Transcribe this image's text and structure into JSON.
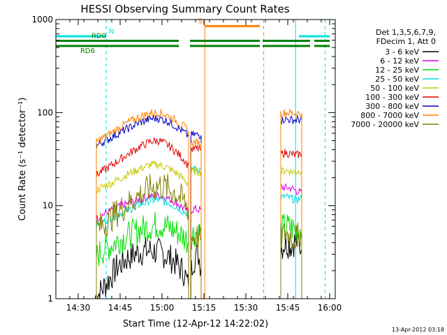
{
  "chart_data": {
    "type": "line",
    "title": "HESSI Observing Summary Count Rates",
    "xlabel": "Start Time (12-Apr-12 14:22:02)",
    "ylabel": "Count Rate (s⁻¹ detector⁻¹)",
    "x_units": "minutes after 14:22:02",
    "xlim": [
      0,
      100
    ],
    "ylim": [
      1,
      1000
    ],
    "y_scale": "log",
    "grid": false,
    "x_ticks": [
      {
        "x": 8,
        "label": "14:30"
      },
      {
        "x": 23,
        "label": "14:45"
      },
      {
        "x": 38,
        "label": "15:00"
      },
      {
        "x": 53,
        "label": "15:15"
      },
      {
        "x": 68,
        "label": "15:30"
      },
      {
        "x": 83,
        "label": "15:45"
      },
      {
        "x": 98,
        "label": "16:00"
      }
    ],
    "y_ticks": [
      {
        "y": 1,
        "label": "1"
      },
      {
        "y": 10,
        "label": "10"
      },
      {
        "y": 100,
        "label": "100"
      },
      {
        "y": 1000,
        "label": "1000"
      }
    ],
    "legend_header": [
      "Det 1,3,5,6,7,9,",
      "FDecim 1, Att 0"
    ],
    "legend_position": "right",
    "timestamp": "13-Apr-2012 03:18",
    "series": [
      {
        "name": "3 - 6 keV",
        "color": "#000000",
        "segments": [
          {
            "x": [
              14,
              16,
              19,
              22,
              26,
              30,
              34,
              38,
              42,
              46,
              47.5
            ],
            "y": [
              1.0,
              1.2,
              1.6,
              2.2,
              2.8,
              3.2,
              3.3,
              3.1,
              2.6,
              1.9,
              1.3
            ]
          },
          {
            "x": [
              48.3,
              49,
              50,
              51,
              52
            ],
            "y": [
              1.8,
              2.6,
              2.8,
              3.0,
              2.2
            ]
          },
          {
            "x": [
              80.5,
              82,
              84,
              86,
              88
            ],
            "y": [
              3.5,
              4.0,
              3.8,
              4.2,
              3.4
            ]
          }
        ]
      },
      {
        "name": "6 - 12 keV",
        "color": "#e000e0",
        "segments": [
          {
            "x": [
              14.5,
              16,
              19,
              22,
              26,
              30,
              34,
              37,
              40,
              43,
              46,
              47.5
            ],
            "y": [
              7.2,
              7.8,
              8.6,
              9.6,
              10.6,
              11.6,
              12.6,
              12.8,
              12.0,
              10.8,
              9.3,
              8.6
            ]
          },
          {
            "x": [
              48.3,
              50,
              52
            ],
            "y": [
              9.0,
              9.2,
              9.0
            ]
          },
          {
            "x": [
              80.5,
              82,
              84,
              86,
              88
            ],
            "y": [
              16.0,
              15.5,
              15.5,
              14.5,
              13.5
            ]
          }
        ]
      },
      {
        "name": "12 - 25 keV",
        "color": "#00e000",
        "segments": [
          {
            "x": [
              14.5,
              16,
              19,
              22,
              26,
              30,
              34,
              37,
              40,
              43,
              46,
              47.5
            ],
            "y": [
              2.8,
              3.2,
              3.6,
              4.2,
              4.8,
              5.5,
              6.0,
              6.3,
              5.9,
              5.3,
              4.6,
              4.1
            ]
          },
          {
            "x": [
              48.3,
              50,
              52
            ],
            "y": [
              4.8,
              5.2,
              5.0
            ]
          },
          {
            "x": [
              80.5,
              82,
              84,
              86,
              88
            ],
            "y": [
              5.5,
              6.0,
              5.8,
              5.6,
              5.5
            ]
          }
        ]
      },
      {
        "name": "25 - 50 keV",
        "color": "#00e0e0",
        "segments": [
          {
            "x": [
              14.5,
              16,
              19,
              22,
              26,
              30,
              34,
              37,
              40,
              43,
              46,
              47.5
            ],
            "y": [
              6.2,
              6.6,
              7.2,
              8.0,
              9.0,
              10.3,
              11.3,
              11.6,
              10.8,
              9.8,
              8.6,
              7.9
            ]
          },
          {
            "x": [
              48.3,
              50,
              52
            ],
            "y": [
              25.0,
              25.0,
              24.5
            ]
          },
          {
            "x": [
              80.5,
              82,
              84,
              86,
              88
            ],
            "y": [
              12.0,
              12.5,
              12.0,
              11.5,
              12.0
            ]
          }
        ]
      },
      {
        "name": "50 - 100 keV",
        "color": "#c8c800",
        "segments": [
          {
            "x": [
              14.5,
              16,
              19,
              22,
              26,
              30,
              34,
              37,
              40,
              43,
              46,
              47.5
            ],
            "y": [
              14.5,
              15.5,
              17.0,
              19.0,
              22.0,
              25.0,
              27.5,
              27.5,
              25.5,
              22.5,
              19.0,
              17.0
            ]
          },
          {
            "x": [
              48.3,
              50,
              52
            ],
            "y": [
              23.0,
              23.5,
              23.0
            ]
          },
          {
            "x": [
              80.5,
              82,
              84,
              86,
              88
            ],
            "y": [
              23.0,
              24.0,
              23.5,
              23.0,
              24.0
            ]
          }
        ]
      },
      {
        "name": "100 - 300 keV",
        "color": "#e00000",
        "segments": [
          {
            "x": [
              14.5,
              16,
              19,
              22,
              26,
              30,
              34,
              37,
              40,
              43,
              46,
              47.5
            ],
            "y": [
              21.0,
              23.0,
              26.0,
              30.0,
              36.0,
              43.0,
              49.0,
              50.0,
              45.0,
              38.0,
              31.0,
              26.0
            ]
          },
          {
            "x": [
              48.3,
              50,
              52
            ],
            "y": [
              40.0,
              41.0,
              40.0
            ]
          },
          {
            "x": [
              80.5,
              82,
              84,
              86,
              88
            ],
            "y": [
              36.0,
              37.0,
              36.0,
              35.0,
              36.0
            ]
          }
        ]
      },
      {
        "name": "300 - 800 keV",
        "color": "#0000c0",
        "segments": [
          {
            "x": [
              14.5,
              16,
              19,
              22,
              26,
              30,
              34,
              37,
              40,
              43,
              46,
              47.5
            ],
            "y": [
              44.0,
              47.0,
              52.0,
              59.0,
              68.0,
              78.0,
              86.0,
              87.0,
              81.0,
              71.0,
              61.0,
              55.0
            ]
          },
          {
            "x": [
              48.3,
              50,
              52
            ],
            "y": [
              57.0,
              58.0,
              57.0
            ]
          },
          {
            "x": [
              80.5,
              82,
              84,
              86,
              88
            ],
            "y": [
              83.0,
              85.0,
              84.0,
              83.0,
              84.0
            ]
          }
        ]
      },
      {
        "name": "800 - 7000 keV",
        "color": "#ff8000",
        "segments": [
          {
            "x": [
              14.5,
              16,
              19,
              22,
              26,
              30,
              34,
              37,
              40,
              43,
              46,
              47.5
            ],
            "y": [
              48.0,
              52.0,
              58.0,
              67.0,
              79.0,
              90.0,
              99.0,
              100.0,
              93.0,
              82.0,
              70.0,
              63.0
            ]
          },
          {
            "x": [
              48.3,
              50,
              52
            ],
            "y": [
              47.0,
              48.0,
              47.0
            ]
          },
          {
            "x": [
              80.5,
              82,
              84,
              86,
              88
            ],
            "y": [
              98.0,
              100.0,
              99.0,
              98.0,
              99.0
            ]
          }
        ]
      },
      {
        "name": "7000 - 20000 keV",
        "color": "#808000",
        "segments": [
          {
            "x": [
              14.5,
              16,
              19,
              22,
              26,
              30,
              34,
              37,
              40,
              43,
              46,
              47.5
            ],
            "y": [
              5.5,
              6.0,
              7.0,
              8.5,
              10.5,
              13.0,
              15.5,
              16.5,
              15.5,
              13.5,
              11.0,
              9.0
            ]
          },
          {
            "x": [
              48.3,
              50,
              52
            ],
            "y": [
              4.5,
              4.6,
              4.5
            ]
          },
          {
            "x": [
              80.5,
              82,
              84,
              86,
              88
            ],
            "y": [
              4.5,
              5.0,
              4.8,
              4.5,
              4.8
            ]
          }
        ]
      }
    ],
    "status_bars": [
      {
        "label": "N",
        "color": "#00e0e0",
        "y": 660,
        "segments": [
          [
            0,
            18
          ],
          [
            87,
            98
          ]
        ]
      },
      {
        "label": "S",
        "color": "#ff8000",
        "y": 850,
        "segments": [
          [
            53.5,
            73
          ]
        ]
      },
      {
        "label": "RD0",
        "color": "#008000",
        "y": 590,
        "segments": [
          [
            0,
            44
          ],
          [
            48,
            73
          ],
          [
            74,
            91
          ],
          [
            92.5,
            98
          ]
        ]
      },
      {
        "label": "RD6",
        "color": "#008000",
        "y": 520,
        "segments": [
          [
            0,
            44
          ],
          [
            48,
            73
          ],
          [
            74,
            91
          ],
          [
            92.5,
            98
          ]
        ]
      }
    ],
    "vertical_markers": [
      {
        "x": 0,
        "color": "#00e0e0",
        "style": "solid"
      },
      {
        "x": 18,
        "color": "#00e0e0",
        "style": "dashed"
      },
      {
        "x": 53.3,
        "color": "#ff8000",
        "style": "solid"
      },
      {
        "x": 74.4,
        "color": "#ff8000",
        "style": "dashed"
      },
      {
        "x": 85.8,
        "color": "#00e0e0",
        "style": "solid"
      },
      {
        "x": 96.4,
        "color": "#00e0e0",
        "style": "dashed"
      }
    ]
  }
}
